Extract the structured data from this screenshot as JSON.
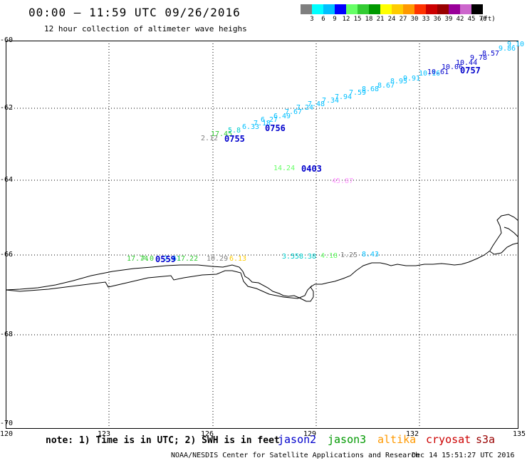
{
  "title": "00:00 – 11:59 UTC 09/26/2016",
  "subtitle": "12 hour collection of altimeter wave heighs",
  "colorbar": {
    "colors": [
      "#7f7f7f",
      "#00ffff",
      "#00bfff",
      "#0000ff",
      "#66ff66",
      "#33cc33",
      "#009900",
      "#ffff00",
      "#ffcc00",
      "#ff9900",
      "#ff3300",
      "#cc0000",
      "#990000",
      "#990099",
      "#cc66cc",
      "#000000"
    ],
    "labels": [
      "3",
      "6",
      "9",
      "12",
      "15",
      "18",
      "21",
      "24",
      "27",
      "30",
      "33",
      "36",
      "39",
      "42",
      "45",
      "70",
      "(ft)"
    ]
  },
  "axes": {
    "lat_labels": [
      "-60",
      "-62",
      "-64",
      "-66",
      "-68",
      "-70"
    ],
    "lon_labels": [
      "120",
      "123",
      "126",
      "129",
      "132",
      "135"
    ]
  },
  "tracks": [
    {
      "pass": "0755",
      "values": [
        "2.12",
        "17.45",
        "5.8",
        "6.33",
        "7.18",
        "6.27"
      ],
      "colors": [
        "#808080",
        "#33cc33",
        "#00cccc",
        "#00bfff",
        "#00bfff",
        "#00bfff"
      ]
    },
    {
      "pass": "0756",
      "values": [
        "6.49",
        "7.67",
        "7.24",
        "7.48",
        "7.34",
        "7.94",
        "7.59",
        "8.68",
        "8.67",
        "8.95",
        "9.91",
        "10.16"
      ],
      "colors": [
        "#00bfff",
        "#00bfff",
        "#00bfff",
        "#00bfff",
        "#00bfff",
        "#00bfff",
        "#00bfff",
        "#00bfff",
        "#00bfff",
        "#00bfff",
        "#00bfff",
        "#00bfff"
      ]
    },
    {
      "pass": "0757",
      "values": [
        "10.61",
        "10.06",
        "10.44",
        "9.78",
        "8.57",
        "9.86",
        "9.10"
      ],
      "colors": [
        "#0000cc",
        "#0000cc",
        "#0000cc",
        "#0000cc",
        "#0000cc",
        "#00bfff",
        "#00bfff"
      ]
    },
    {
      "pass": "0403",
      "values": [
        "14.24",
        "45.87"
      ],
      "colors": [
        "#66ff66",
        "#ff99ff"
      ]
    },
    {
      "pass": "0559",
      "values": [
        "17.74",
        "7.0",
        "7.61",
        "17.22",
        "10.29",
        "6.13",
        "3.55",
        "8.38",
        "4.18",
        "1.25",
        "8.43"
      ],
      "colors": [
        "#33cc33",
        "#33cc33",
        "#00bfff",
        "#33cc33",
        "#808080",
        "#ffcc00",
        "#00cccc",
        "#00cccc",
        "#66ff66",
        "#808080",
        "#00bfff"
      ]
    }
  ],
  "note": "note: 1) Time is in UTC; 2) SWH is in feet",
  "legend": [
    {
      "name": "jason2",
      "color": "#0000cc"
    },
    {
      "name": "jason3",
      "color": "#009900"
    },
    {
      "name": "altika",
      "color": "#ff9900"
    },
    {
      "name": "cryosat",
      "color": "#cc0000"
    },
    {
      "name": "s3a",
      "color": "#990000"
    }
  ],
  "credit": "NOAA/NESDIS Center for Satellite Applications and Research",
  "timestamp": "Dec 14 15:51:27 UTC 2016"
}
